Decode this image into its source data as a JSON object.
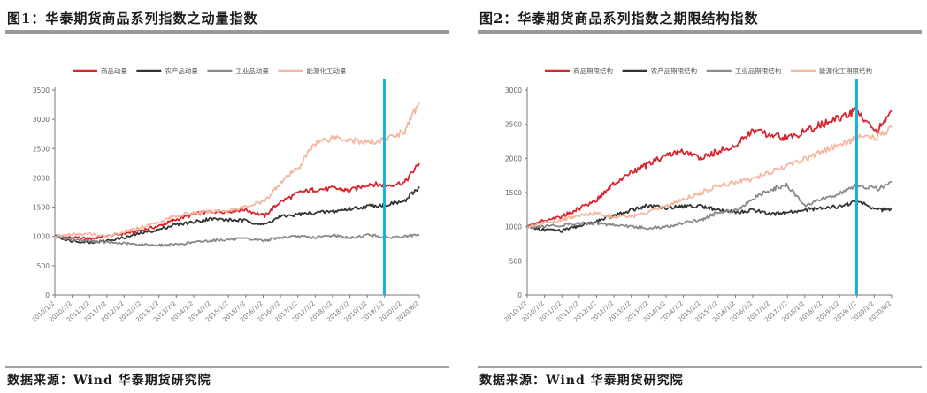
{
  "source_note": "数据来源：Wind 华泰期货研究院",
  "chart_data": [
    {
      "type": "line",
      "title": "图1：华泰期货商品系列指数之动量指数",
      "ylim": [
        0,
        3500
      ],
      "yticks": [
        0,
        500,
        1000,
        1500,
        2000,
        2500,
        3000,
        3500
      ],
      "xlim": [
        "2010/1",
        "2020/6"
      ],
      "xticks": [
        "2010/1/2",
        "2010/7/2",
        "2011/1/2",
        "2011/7/2",
        "2012/1/2",
        "2012/7/2",
        "2013/1/2",
        "2013/7/2",
        "2014/1/2",
        "2014/7/2",
        "2015/1/2",
        "2015/7/2",
        "2016/1/2",
        "2016/7/2",
        "2017/1/2",
        "2017/7/2",
        "2018/1/2",
        "2018/7/2",
        "2019/1/2",
        "2019/7/2",
        "2020/1/2",
        "2020/6/2"
      ],
      "marker_x": "2019/6",
      "marker_color": "#1ab0dc",
      "legend_position": "top",
      "grid": false,
      "series": [
        {
          "name": "商品动量",
          "color": "#d9232d",
          "x": [
            "2010/1",
            "2010/6",
            "2011/1",
            "2011/6",
            "2012/1",
            "2012/6",
            "2013/1",
            "2013/6",
            "2014/1",
            "2014/6",
            "2015/1",
            "2015/6",
            "2016/1",
            "2016/6",
            "2017/1",
            "2017/6",
            "2018/1",
            "2018/6",
            "2019/1",
            "2019/6",
            "2020/1",
            "2020/6"
          ],
          "values": [
            1000,
            980,
            960,
            1000,
            1050,
            1100,
            1180,
            1280,
            1380,
            1420,
            1430,
            1460,
            1350,
            1580,
            1750,
            1800,
            1820,
            1780,
            1900,
            1870,
            1920,
            2250
          ]
        },
        {
          "name": "农产品动量",
          "color": "#333333",
          "x": [
            "2010/1",
            "2010/6",
            "2011/1",
            "2011/6",
            "2012/1",
            "2012/6",
            "2013/1",
            "2013/6",
            "2014/1",
            "2014/6",
            "2015/1",
            "2015/6",
            "2016/1",
            "2016/6",
            "2017/1",
            "2017/6",
            "2018/1",
            "2018/6",
            "2019/1",
            "2019/6",
            "2020/1",
            "2020/6"
          ],
          "values": [
            1000,
            930,
            900,
            920,
            980,
            1050,
            1120,
            1200,
            1250,
            1300,
            1280,
            1270,
            1200,
            1330,
            1380,
            1400,
            1430,
            1470,
            1520,
            1540,
            1600,
            1850
          ]
        },
        {
          "name": "工业品动量",
          "color": "#8a8a8a",
          "x": [
            "2010/1",
            "2010/6",
            "2011/1",
            "2011/6",
            "2012/1",
            "2012/6",
            "2013/1",
            "2013/6",
            "2014/1",
            "2014/6",
            "2015/1",
            "2015/6",
            "2016/1",
            "2016/6",
            "2017/1",
            "2017/6",
            "2018/1",
            "2018/6",
            "2019/1",
            "2019/6",
            "2020/1",
            "2020/6"
          ],
          "values": [
            1000,
            960,
            920,
            900,
            880,
            860,
            850,
            860,
            900,
            930,
            950,
            960,
            930,
            980,
            1000,
            980,
            1020,
            970,
            1030,
            980,
            1000,
            1020
          ]
        },
        {
          "name": "能源化工动量",
          "color": "#f4b8a0",
          "x": [
            "2010/1",
            "2010/6",
            "2011/1",
            "2011/6",
            "2012/1",
            "2012/6",
            "2013/1",
            "2013/6",
            "2014/1",
            "2014/6",
            "2015/1",
            "2015/6",
            "2016/1",
            "2016/6",
            "2017/1",
            "2017/6",
            "2018/1",
            "2018/6",
            "2019/1",
            "2019/6",
            "2020/1",
            "2020/6"
          ],
          "values": [
            1000,
            1030,
            1040,
            1000,
            1080,
            1150,
            1250,
            1350,
            1400,
            1420,
            1450,
            1500,
            1600,
            1900,
            2200,
            2600,
            2700,
            2650,
            2600,
            2650,
            2800,
            3300
          ]
        }
      ]
    },
    {
      "type": "line",
      "title": "图2：华泰期货商品系列指数之期限结构指数",
      "ylim": [
        0,
        3000
      ],
      "yticks": [
        0,
        500,
        1000,
        1500,
        2000,
        2500,
        3000
      ],
      "xlim": [
        "2010/1",
        "2020/6"
      ],
      "xticks": [
        "2010/1/2",
        "2010/7/2",
        "2011/1/2",
        "2011/7/2",
        "2012/1/2",
        "2012/7/2",
        "2013/1/2",
        "2013/7/2",
        "2014/1/2",
        "2014/7/2",
        "2015/1/2",
        "2015/7/2",
        "2016/1/2",
        "2016/7/2",
        "2017/1/2",
        "2017/7/2",
        "2018/1/2",
        "2018/7/2",
        "2019/1/2",
        "2019/7/2",
        "2020/1/2",
        "2020/6/2"
      ],
      "marker_x": "2019/6",
      "marker_color": "#1ab0dc",
      "legend_position": "top",
      "grid": false,
      "series": [
        {
          "name": "商品期限结构",
          "color": "#d9232d",
          "x": [
            "2010/1",
            "2010/6",
            "2011/1",
            "2011/6",
            "2012/1",
            "2012/6",
            "2013/1",
            "2013/6",
            "2014/1",
            "2014/6",
            "2015/1",
            "2015/6",
            "2016/1",
            "2016/6",
            "2017/1",
            "2017/6",
            "2018/1",
            "2018/6",
            "2019/1",
            "2019/6",
            "2020/1",
            "2020/6"
          ],
          "values": [
            1000,
            1080,
            1150,
            1250,
            1400,
            1600,
            1800,
            1900,
            2050,
            2100,
            2000,
            2100,
            2200,
            2400,
            2350,
            2300,
            2400,
            2500,
            2600,
            2700,
            2400,
            2700
          ]
        },
        {
          "name": "农产品期限结构",
          "color": "#333333",
          "x": [
            "2010/1",
            "2010/6",
            "2011/1",
            "2011/6",
            "2012/1",
            "2012/6",
            "2013/1",
            "2013/6",
            "2014/1",
            "2014/6",
            "2015/1",
            "2015/6",
            "2016/1",
            "2016/6",
            "2017/1",
            "2017/6",
            "2018/1",
            "2018/6",
            "2019/1",
            "2019/6",
            "2020/1",
            "2020/6"
          ],
          "values": [
            1000,
            960,
            940,
            1000,
            1080,
            1150,
            1250,
            1300,
            1280,
            1300,
            1300,
            1250,
            1200,
            1250,
            1180,
            1200,
            1250,
            1280,
            1300,
            1380,
            1250,
            1250
          ]
        },
        {
          "name": "工业品期限结构",
          "color": "#8a8a8a",
          "x": [
            "2010/1",
            "2010/6",
            "2011/1",
            "2011/6",
            "2012/1",
            "2012/6",
            "2013/1",
            "2013/6",
            "2014/1",
            "2014/6",
            "2015/1",
            "2015/6",
            "2016/1",
            "2016/6",
            "2017/1",
            "2017/6",
            "2018/1",
            "2018/6",
            "2019/1",
            "2019/6",
            "2020/1",
            "2020/6"
          ],
          "values": [
            1000,
            1010,
            1020,
            1050,
            1050,
            1030,
            1000,
            980,
            1000,
            1050,
            1100,
            1200,
            1250,
            1400,
            1550,
            1600,
            1300,
            1400,
            1500,
            1600,
            1550,
            1650
          ]
        },
        {
          "name": "能源化工期限结构",
          "color": "#f4b8a0",
          "x": [
            "2010/1",
            "2010/6",
            "2011/1",
            "2011/6",
            "2012/1",
            "2012/6",
            "2013/1",
            "2013/6",
            "2014/1",
            "2014/6",
            "2015/1",
            "2015/6",
            "2016/1",
            "2016/6",
            "2017/1",
            "2017/6",
            "2018/1",
            "2018/6",
            "2019/1",
            "2019/6",
            "2020/1",
            "2020/6"
          ],
          "values": [
            1000,
            1050,
            1100,
            1150,
            1200,
            1150,
            1150,
            1200,
            1300,
            1400,
            1500,
            1600,
            1650,
            1700,
            1800,
            1900,
            2000,
            2100,
            2200,
            2300,
            2300,
            2450
          ]
        }
      ]
    }
  ]
}
